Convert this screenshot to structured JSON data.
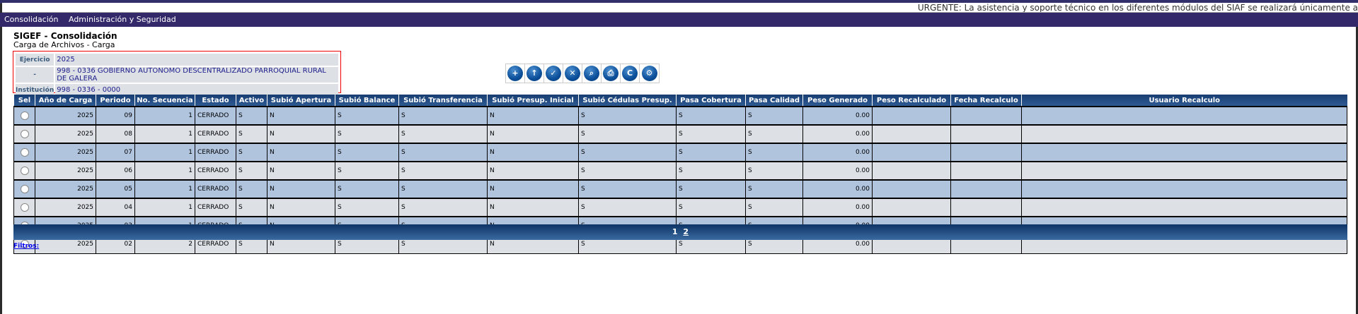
{
  "ticker": "URGENTE: La asistencia y soporte técnico en los diferentes módulos del SIAF se realizará únicamente a",
  "menu": [
    "Consolidación",
    "Administración y Seguridad"
  ],
  "title": "SIGEF - Consolidación",
  "subtitle": "Carga de Archivos - Carga",
  "info": [
    {
      "label": "Ejercicio",
      "value": "2025"
    },
    {
      "label": "-",
      "value": "998 - 0336 GOBIERNO AUTONOMO DESCENTRALIZADO PARROQUIAL RURAL DE GALERA"
    },
    {
      "label": "Institución",
      "value": "998 - 0336 - 0000"
    }
  ],
  "toolbar": [
    {
      "icon": "new-file-icon",
      "glyph": "+"
    },
    {
      "icon": "upload-save-icon",
      "glyph": "↑"
    },
    {
      "icon": "grid-check-icon",
      "glyph": "✓"
    },
    {
      "icon": "save-delete-icon",
      "glyph": "✕"
    },
    {
      "icon": "file-search-icon",
      "glyph": "⌕"
    },
    {
      "icon": "print-icon",
      "glyph": "⎙"
    },
    {
      "icon": "copy-check-icon",
      "glyph": "C"
    },
    {
      "icon": "search-settings-icon",
      "glyph": "⚙"
    }
  ],
  "columns": [
    "Sel",
    "Año de Carga",
    "Periodo",
    "No. Secuencia",
    "Estado",
    "Activo",
    "Subió Apertura",
    "Subió Balance",
    "Subió Transferencia",
    "Subió Presup. Inicial",
    "Subió Cédulas Presup.",
    "Pasa Cobertura",
    "Pasa Calidad",
    "Peso Generado",
    "Peso Recalculado",
    "Fecha Recalculo",
    "Usuario Recalculo"
  ],
  "rows": [
    [
      "2025",
      "09",
      "1",
      "CERRADO",
      "S",
      "N",
      "S",
      "S",
      "N",
      "S",
      "S",
      "S",
      "0.00",
      "",
      "",
      ""
    ],
    [
      "2025",
      "08",
      "1",
      "CERRADO",
      "S",
      "N",
      "S",
      "S",
      "N",
      "S",
      "S",
      "S",
      "0.00",
      "",
      "",
      ""
    ],
    [
      "2025",
      "07",
      "1",
      "CERRADO",
      "S",
      "N",
      "S",
      "S",
      "N",
      "S",
      "S",
      "S",
      "0.00",
      "",
      "",
      ""
    ],
    [
      "2025",
      "06",
      "1",
      "CERRADO",
      "S",
      "N",
      "S",
      "S",
      "N",
      "S",
      "S",
      "S",
      "0.00",
      "",
      "",
      ""
    ],
    [
      "2025",
      "05",
      "1",
      "CERRADO",
      "S",
      "N",
      "S",
      "S",
      "N",
      "S",
      "S",
      "S",
      "0.00",
      "",
      "",
      ""
    ],
    [
      "2025",
      "04",
      "1",
      "CERRADO",
      "S",
      "N",
      "S",
      "S",
      "N",
      "S",
      "S",
      "S",
      "0.00",
      "",
      "",
      ""
    ],
    [
      "2025",
      "03",
      "1",
      "CERRADO",
      "S",
      "N",
      "S",
      "S",
      "N",
      "S",
      "S",
      "S",
      "0.00",
      "",
      "",
      ""
    ],
    [
      "2025",
      "02",
      "2",
      "CERRADO",
      "S",
      "N",
      "S",
      "S",
      "N",
      "S",
      "S",
      "S",
      "0.00",
      "",
      "",
      ""
    ]
  ],
  "pager": {
    "pages": [
      "1",
      "2"
    ],
    "current": "1"
  },
  "filtros": "Filtros:"
}
